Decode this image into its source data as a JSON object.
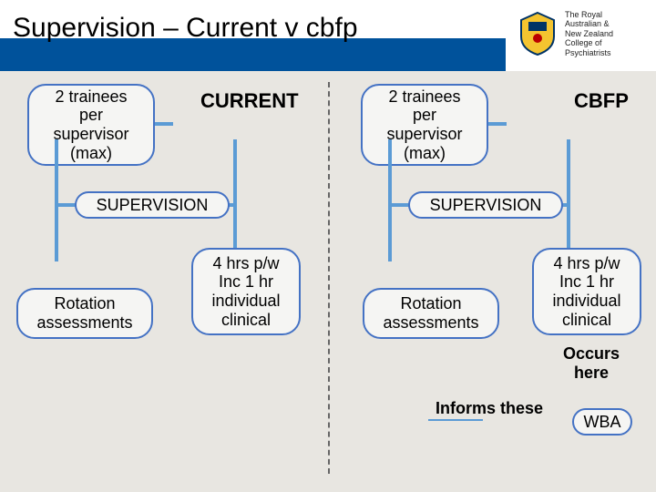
{
  "title": "Supervision – Current v cbfp",
  "logo_text": "The Royal\nAustralian &\nNew Zealand\nCollege of\nPsychiatrists",
  "colors": {
    "header_bar": "#00529b",
    "pill_border": "#4472c4",
    "pill_fill": "#f5f5f3",
    "connector": "#5b9bd5",
    "slide_bg": "#e8e6e1"
  },
  "left": {
    "heading": "CURRENT",
    "hub": "SUPERVISION",
    "top": "2 trainees\nper\nsupervisor\n(max)",
    "bl": "Rotation\nassessments",
    "br": "4 hrs p/w\nInc 1 hr\nindividual\nclinical"
  },
  "right": {
    "heading": "CBFP",
    "hub": "SUPERVISION",
    "top": "2 trainees\nper\nsupervisor\n(max)",
    "bl": "Rotation\nassessments",
    "br": "4 hrs p/w\nInc 1 hr\nindividual\nclinical",
    "extra1": "Occurs\nhere",
    "extra2": "Informs these",
    "wba": "WBA"
  }
}
